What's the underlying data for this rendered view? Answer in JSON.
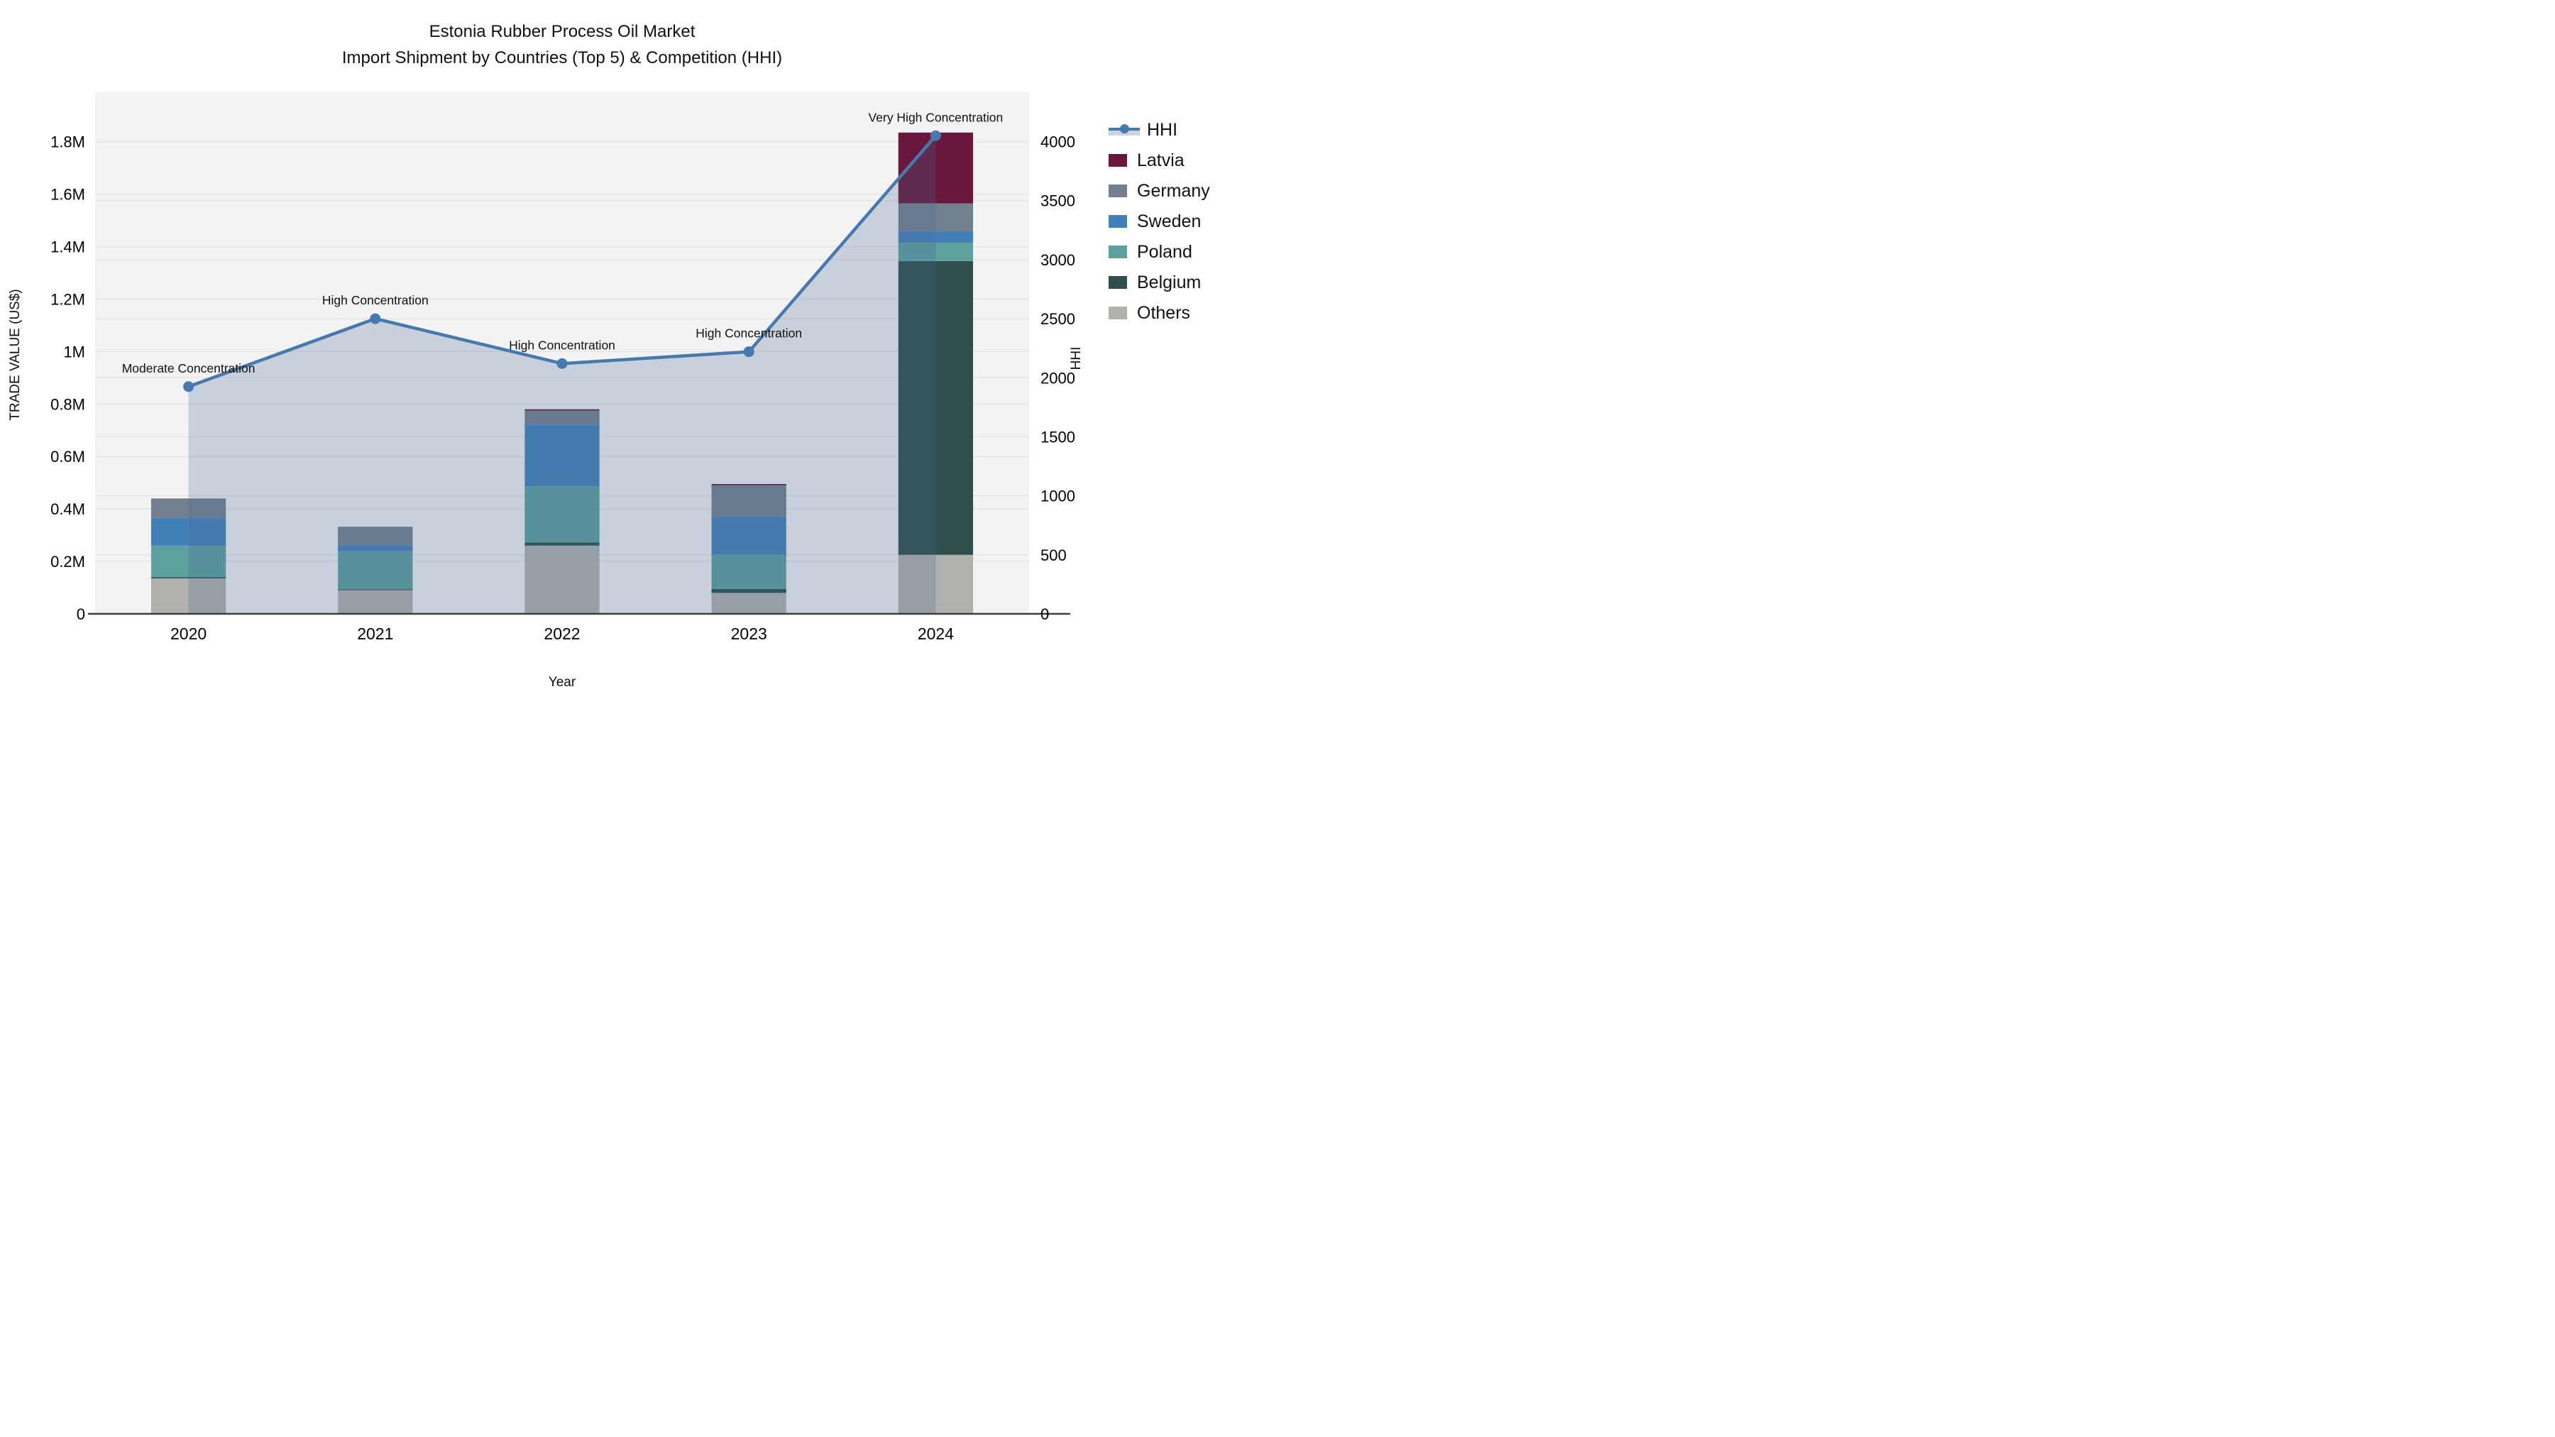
{
  "title": {
    "line1": "Estonia Rubber Process Oil Market",
    "line2": "Import Shipment by Countries (Top 5) & Competition (HHI)"
  },
  "axes": {
    "x": {
      "label": "Year",
      "categories": [
        "2020",
        "2021",
        "2022",
        "2023",
        "2024"
      ]
    },
    "y_left": {
      "label": "TRADE VALUE (US$)",
      "max": 1940000,
      "tick_values": [
        0,
        200000,
        400000,
        600000,
        800000,
        1000000,
        1200000,
        1400000,
        1600000,
        1800000
      ],
      "tick_labels": [
        "0",
        "0.2M",
        "0.4M",
        "0.6M",
        "0.8M",
        "1M",
        "1.2M",
        "1.4M",
        "1.6M",
        "1.8M"
      ]
    },
    "y_right": {
      "label": "HHI",
      "max": 4310,
      "tick_values": [
        0,
        500,
        1000,
        1500,
        2000,
        2500,
        3000,
        3500,
        4000
      ],
      "tick_labels": [
        "0",
        "500",
        "1000",
        "1500",
        "2000",
        "2500",
        "3000",
        "3500",
        "4000"
      ]
    }
  },
  "colors": {
    "plot_bg": "#f3f3f3",
    "grid": "#e4e4e4",
    "axis_line": "#3f3f3f",
    "hhi_line": "#4679ad",
    "hhi_area_fill": "rgba(71,105,148,0.25)",
    "annotation_text": "#111111"
  },
  "legend": {
    "items": [
      {
        "id": "hhi",
        "label": "HHI",
        "swatch": "line",
        "color": "#4679ad",
        "band": "#cdd4df"
      },
      {
        "id": "latvia",
        "label": "Latvia",
        "swatch": "square",
        "color": "#69173a"
      },
      {
        "id": "germany",
        "label": "Germany",
        "swatch": "square",
        "color": "#73808f"
      },
      {
        "id": "sweden",
        "label": "Sweden",
        "swatch": "square",
        "color": "#4480b8"
      },
      {
        "id": "poland",
        "label": "Poland",
        "swatch": "square",
        "color": "#5da19f"
      },
      {
        "id": "belgium",
        "label": "Belgium",
        "swatch": "square",
        "color": "#2e4f4c"
      },
      {
        "id": "others",
        "label": "Others",
        "swatch": "square",
        "color": "#b0b0ad"
      }
    ]
  },
  "chart_data": {
    "type": "bar+line",
    "title": "Estonia Rubber Process Oil Market — Import Shipment by Countries (Top 5) & Competition (HHI)",
    "xlabel": "Year",
    "ylabel_left": "TRADE VALUE (US$)",
    "ylabel_right": "HHI",
    "categories": [
      "2020",
      "2021",
      "2022",
      "2023",
      "2024"
    ],
    "bar_stack_order_bottom_to_top": [
      "Others",
      "Belgium",
      "Poland",
      "Sweden",
      "Germany",
      "Latvia"
    ],
    "series": [
      {
        "name": "Others",
        "color": "#b0b0ad",
        "values": [
          135000,
          90000,
          260000,
          80000,
          225000
        ]
      },
      {
        "name": "Belgium",
        "color": "#2e4f4c",
        "values": [
          5000,
          4000,
          12000,
          15000,
          1120000
        ]
      },
      {
        "name": "Poland",
        "color": "#5da19f",
        "values": [
          120000,
          145000,
          215000,
          130000,
          70000
        ]
      },
      {
        "name": "Sweden",
        "color": "#4480b8",
        "values": [
          105000,
          23000,
          235000,
          145000,
          45000
        ]
      },
      {
        "name": "Germany",
        "color": "#73808f",
        "values": [
          75000,
          70000,
          53000,
          120000,
          105000
        ]
      },
      {
        "name": "Latvia",
        "color": "#69173a",
        "values": [
          0,
          0,
          5000,
          5000,
          270000
        ]
      }
    ],
    "bar_totals": [
      440000,
      332000,
      780000,
      495000,
      1835000
    ],
    "line": {
      "name": "HHI",
      "color": "#4679ad",
      "values": [
        1925,
        2500,
        2120,
        2220,
        4050
      ],
      "area_fill": true
    },
    "annotations": [
      {
        "category": "2020",
        "text": "Moderate Concentration"
      },
      {
        "category": "2021",
        "text": "High Concentration"
      },
      {
        "category": "2022",
        "text": "High Concentration"
      },
      {
        "category": "2023",
        "text": "High Concentration"
      },
      {
        "category": "2024",
        "text": "Very High Concentration"
      }
    ],
    "legend_position": "right",
    "grid": true
  }
}
